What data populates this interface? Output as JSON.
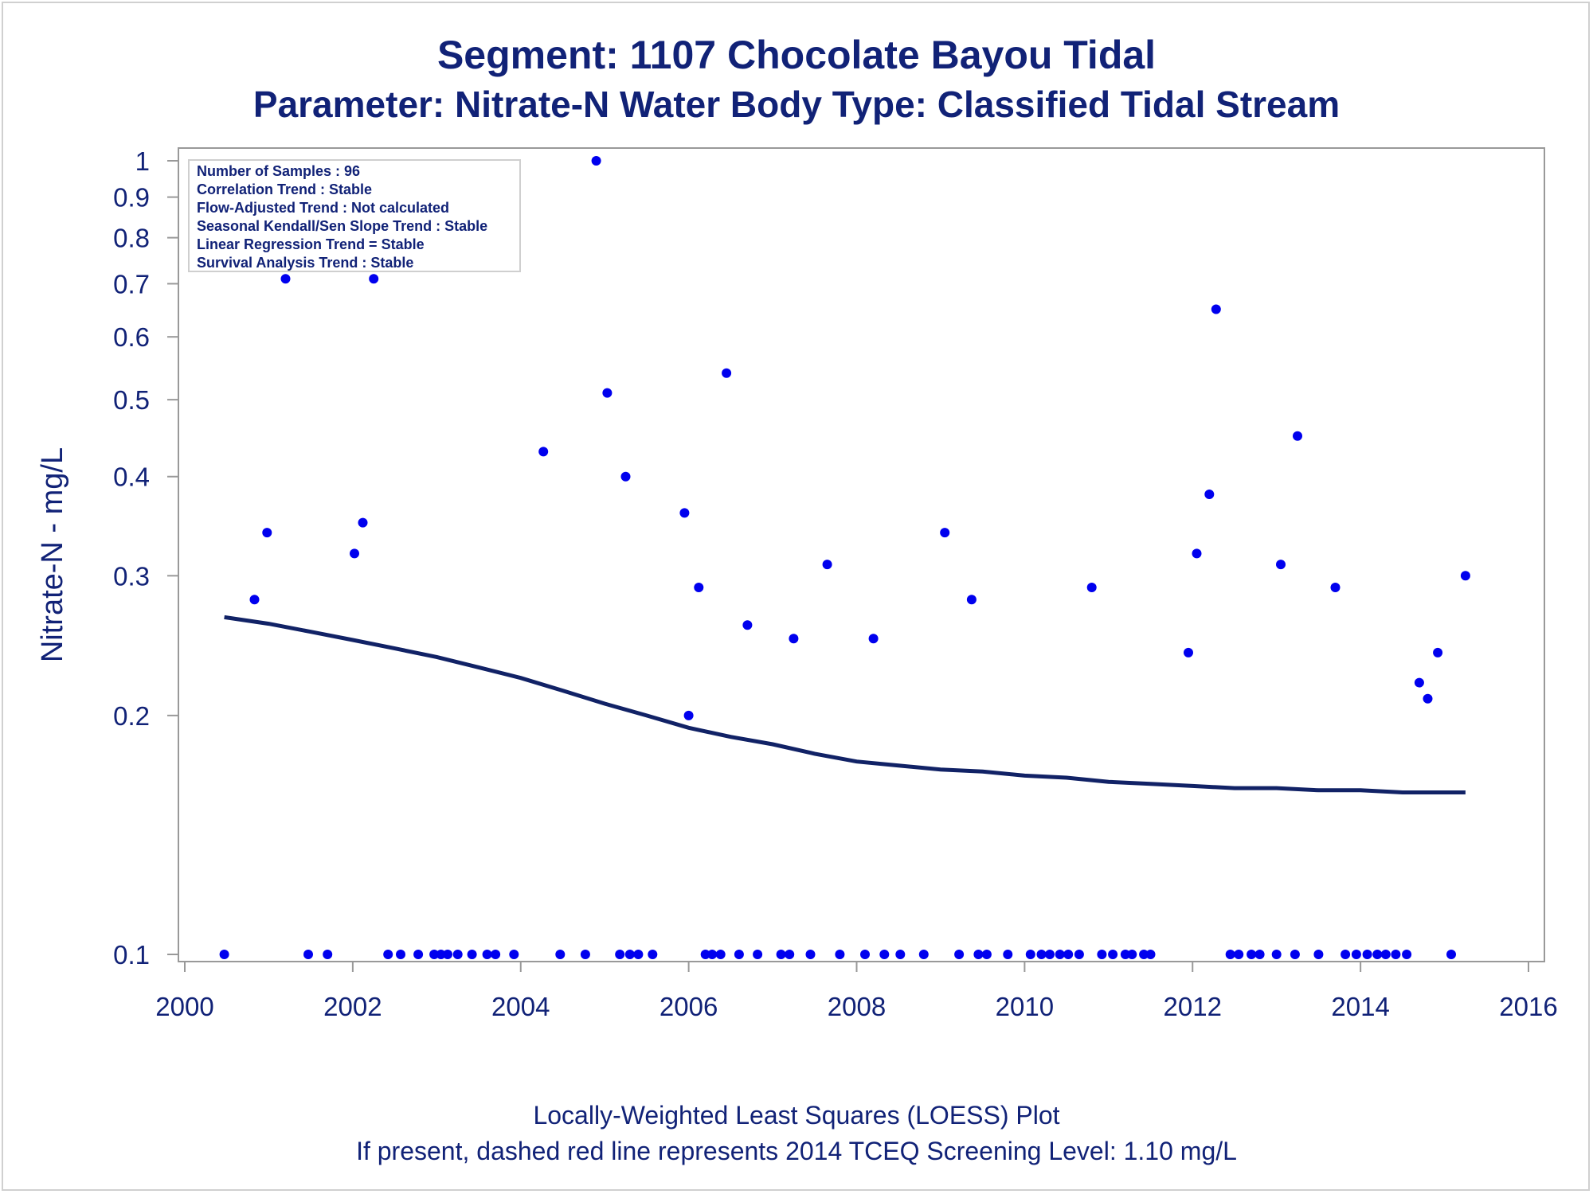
{
  "chart_data": {
    "type": "scatter",
    "title": "Segment: 1107  Chocolate Bayou Tidal",
    "subtitle": "Parameter: Nitrate-N   Water Body Type: Classified Tidal Stream",
    "xlabel": "",
    "ylabel": "Nitrate-N - mg/L",
    "footnote_1": "Locally-Weighted Least Squares (LOESS) Plot",
    "footnote_2": "If present, dashed red line represents 2014 TCEQ Screening Level: 1.10 mg/L",
    "x_axis": {
      "min": 2000,
      "max": 2016,
      "ticks": [
        "2000",
        "2002",
        "2004",
        "2006",
        "2008",
        "2010",
        "2012",
        "2014",
        "2016"
      ]
    },
    "y_axis": {
      "scale": "log",
      "min": 0.1,
      "max": 1.0,
      "ticks": [
        {
          "value": 0.1,
          "label": "0.1"
        },
        {
          "value": 0.2,
          "label": "0.2"
        },
        {
          "value": 0.3,
          "label": "0.3"
        },
        {
          "value": 0.4,
          "label": "0.4"
        },
        {
          "value": 0.5,
          "label": "0.5"
        },
        {
          "value": 0.6,
          "label": "0.6"
        },
        {
          "value": 0.7,
          "label": "0.7"
        },
        {
          "value": 0.8,
          "label": "0.8"
        },
        {
          "value": 0.9,
          "label": "0.9"
        },
        {
          "value": 1.0,
          "label": "1"
        }
      ]
    },
    "grid": false,
    "marker_color": "#0000ee",
    "line_color": "#112266",
    "inset": [
      "Number of Samples : 96",
      "Correlation Trend : Stable",
      "Flow-Adjusted Trend : Not calculated",
      "Seasonal Kendall/Sen Slope Trend : Stable",
      "Linear Regression Trend = Stable",
      "Survival Analysis Trend : Stable"
    ],
    "points": [
      [
        2000.47,
        0.1
      ],
      [
        2000.83,
        0.28
      ],
      [
        2000.98,
        0.34
      ],
      [
        2001.2,
        0.71
      ],
      [
        2001.47,
        0.1
      ],
      [
        2001.7,
        0.1
      ],
      [
        2002.02,
        0.32
      ],
      [
        2002.12,
        0.35
      ],
      [
        2002.25,
        0.71
      ],
      [
        2002.42,
        0.1
      ],
      [
        2002.57,
        0.1
      ],
      [
        2002.78,
        0.1
      ],
      [
        2002.97,
        0.1
      ],
      [
        2003.05,
        0.1
      ],
      [
        2003.13,
        0.1
      ],
      [
        2003.25,
        0.1
      ],
      [
        2003.42,
        0.1
      ],
      [
        2003.6,
        0.1
      ],
      [
        2003.7,
        0.1
      ],
      [
        2003.92,
        0.1
      ],
      [
        2004.27,
        0.43
      ],
      [
        2004.47,
        0.1
      ],
      [
        2004.77,
        0.1
      ],
      [
        2004.9,
        1.0
      ],
      [
        2005.03,
        0.51
      ],
      [
        2005.18,
        0.1
      ],
      [
        2005.25,
        0.4
      ],
      [
        2005.3,
        0.1
      ],
      [
        2005.4,
        0.1
      ],
      [
        2005.57,
        0.1
      ],
      [
        2005.95,
        0.36
      ],
      [
        2006.0,
        0.2
      ],
      [
        2006.12,
        0.29
      ],
      [
        2006.2,
        0.1
      ],
      [
        2006.28,
        0.1
      ],
      [
        2006.38,
        0.1
      ],
      [
        2006.45,
        0.54
      ],
      [
        2006.6,
        0.1
      ],
      [
        2006.7,
        0.26
      ],
      [
        2006.82,
        0.1
      ],
      [
        2007.1,
        0.1
      ],
      [
        2007.2,
        0.1
      ],
      [
        2007.25,
        0.25
      ],
      [
        2007.45,
        0.1
      ],
      [
        2007.65,
        0.31
      ],
      [
        2007.8,
        0.1
      ],
      [
        2008.1,
        0.1
      ],
      [
        2008.2,
        0.25
      ],
      [
        2008.33,
        0.1
      ],
      [
        2008.52,
        0.1
      ],
      [
        2008.8,
        0.1
      ],
      [
        2009.05,
        0.34
      ],
      [
        2009.22,
        0.1
      ],
      [
        2009.37,
        0.28
      ],
      [
        2009.45,
        0.1
      ],
      [
        2009.55,
        0.1
      ],
      [
        2009.8,
        0.1
      ],
      [
        2010.07,
        0.1
      ],
      [
        2010.2,
        0.1
      ],
      [
        2010.3,
        0.1
      ],
      [
        2010.42,
        0.1
      ],
      [
        2010.52,
        0.1
      ],
      [
        2010.65,
        0.1
      ],
      [
        2010.8,
        0.29
      ],
      [
        2010.92,
        0.1
      ],
      [
        2011.05,
        0.1
      ],
      [
        2011.2,
        0.1
      ],
      [
        2011.28,
        0.1
      ],
      [
        2011.42,
        0.1
      ],
      [
        2011.5,
        0.1
      ],
      [
        2011.95,
        0.24
      ],
      [
        2012.05,
        0.32
      ],
      [
        2012.2,
        0.38
      ],
      [
        2012.28,
        0.65
      ],
      [
        2012.45,
        0.1
      ],
      [
        2012.55,
        0.1
      ],
      [
        2012.7,
        0.1
      ],
      [
        2012.8,
        0.1
      ],
      [
        2013.0,
        0.1
      ],
      [
        2013.05,
        0.31
      ],
      [
        2013.22,
        0.1
      ],
      [
        2013.25,
        0.45
      ],
      [
        2013.5,
        0.1
      ],
      [
        2013.7,
        0.29
      ],
      [
        2013.82,
        0.1
      ],
      [
        2013.95,
        0.1
      ],
      [
        2014.08,
        0.1
      ],
      [
        2014.2,
        0.1
      ],
      [
        2014.3,
        0.1
      ],
      [
        2014.42,
        0.1
      ],
      [
        2014.55,
        0.1
      ],
      [
        2014.7,
        0.22
      ],
      [
        2014.8,
        0.21
      ],
      [
        2014.92,
        0.24
      ],
      [
        2015.08,
        0.1
      ],
      [
        2015.25,
        0.3
      ]
    ],
    "loess": [
      [
        2000.47,
        0.266
      ],
      [
        2001.0,
        0.261
      ],
      [
        2001.5,
        0.255
      ],
      [
        2002.0,
        0.249
      ],
      [
        2002.5,
        0.243
      ],
      [
        2003.0,
        0.237
      ],
      [
        2003.5,
        0.23
      ],
      [
        2004.0,
        0.223
      ],
      [
        2004.5,
        0.215
      ],
      [
        2005.0,
        0.207
      ],
      [
        2005.5,
        0.2
      ],
      [
        2006.0,
        0.193
      ],
      [
        2006.5,
        0.188
      ],
      [
        2007.0,
        0.184
      ],
      [
        2007.5,
        0.179
      ],
      [
        2008.0,
        0.175
      ],
      [
        2008.5,
        0.173
      ],
      [
        2009.0,
        0.171
      ],
      [
        2009.5,
        0.17
      ],
      [
        2010.0,
        0.168
      ],
      [
        2010.5,
        0.167
      ],
      [
        2011.0,
        0.165
      ],
      [
        2011.5,
        0.164
      ],
      [
        2012.0,
        0.163
      ],
      [
        2012.5,
        0.162
      ],
      [
        2013.0,
        0.162
      ],
      [
        2013.5,
        0.161
      ],
      [
        2014.0,
        0.161
      ],
      [
        2014.5,
        0.16
      ],
      [
        2015.25,
        0.16
      ]
    ]
  }
}
